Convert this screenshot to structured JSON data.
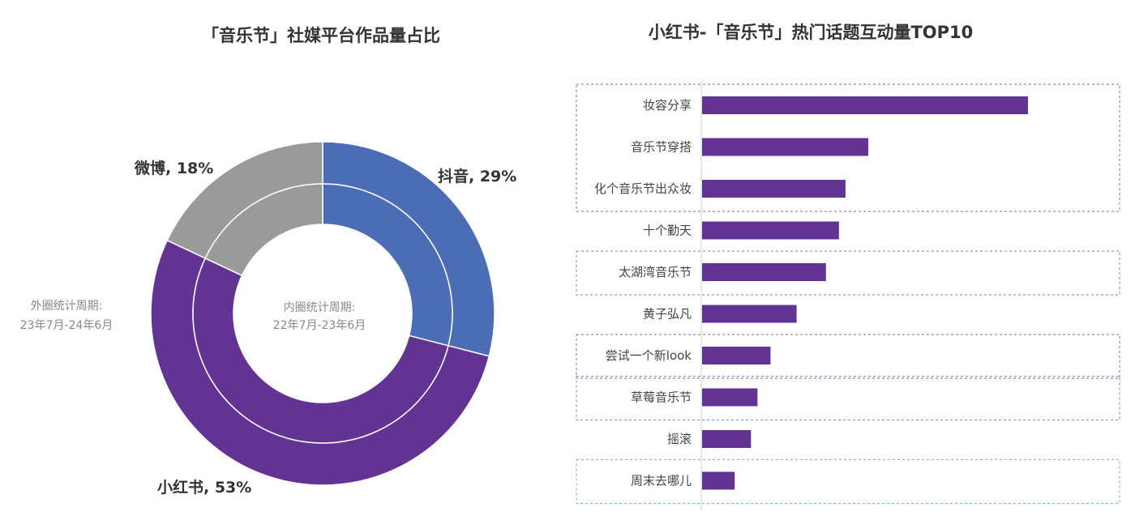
{
  "chart_data": [
    {
      "type": "donut",
      "title": "「音乐节」社媒平台作品量占比",
      "outer_ring": {
        "label_lines": [
          "外圈统计周期:",
          "23年7月-24年6月"
        ],
        "slices": [
          {
            "name": "抖音",
            "value": 29,
            "label": "抖音, 29%",
            "color": "#4a6db5"
          },
          {
            "name": "小红书",
            "value": 53,
            "label": "小红书, 53%",
            "color": "#633393"
          },
          {
            "name": "微博",
            "value": 18,
            "label": "微博, 18%",
            "color": "#9a9a9a"
          }
        ]
      },
      "inner_ring": {
        "label_lines": [
          "内圈统计周期:",
          "22年7月-23年6月"
        ],
        "slices": [
          {
            "name": "抖音",
            "value": 29,
            "color": "#4a6db5"
          },
          {
            "name": "小红书",
            "value": 53,
            "color": "#633393"
          },
          {
            "name": "微博",
            "value": 18,
            "color": "#9a9a9a"
          }
        ]
      }
    },
    {
      "type": "bar",
      "orientation": "horizontal",
      "title": "小红书-「音乐节」热门话题互动量TOP10",
      "categories": [
        "妆容分享",
        "音乐节穿搭",
        "化个音乐节出众妆",
        "十个勤天",
        "太湖湾音乐节",
        "黄子弘凡",
        "尝试一个新look",
        "草莓音乐节",
        "摇滚",
        "周末去哪儿"
      ],
      "values": [
        100,
        51,
        44,
        42,
        38,
        29,
        21,
        17,
        15,
        10
      ],
      "bar_color": "#633393",
      "highlight_groups": [
        {
          "categories": [
            "妆容分享",
            "音乐节穿搭",
            "化个音乐节出众妆"
          ],
          "color": "#b07bb0"
        },
        {
          "categories": [
            "太湖湾音乐节"
          ],
          "color": "#8a9bd0"
        },
        {
          "categories": [
            "尝试一个新look"
          ],
          "color": "#b07bb0"
        },
        {
          "categories": [
            "草莓音乐节"
          ],
          "color": "#8a9bd0"
        },
        {
          "categories": [
            "周末去哪儿"
          ],
          "color": "#7dc4b4"
        }
      ]
    }
  ]
}
